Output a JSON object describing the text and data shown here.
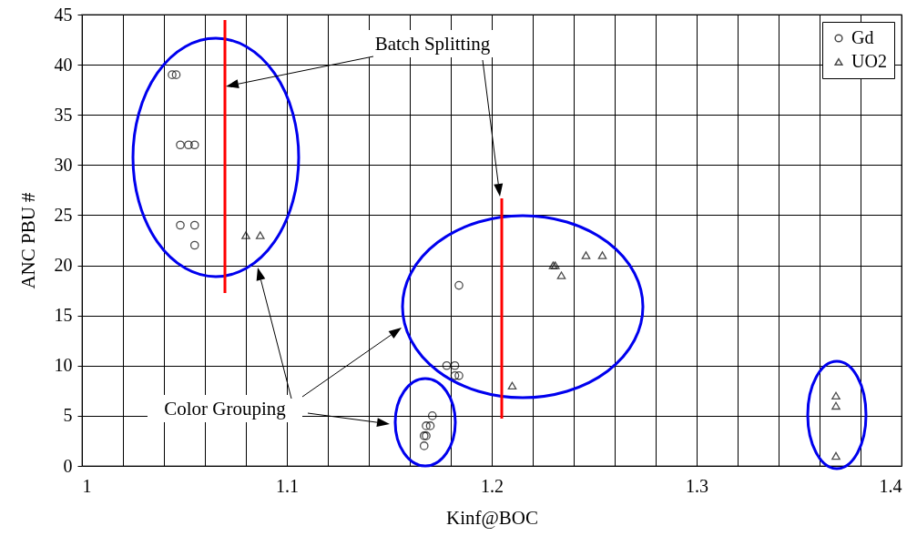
{
  "chart_data": {
    "type": "scatter",
    "xlabel": "Kinf@BOC",
    "ylabel": "ANC PBU #",
    "xlim": [
      1,
      1.4
    ],
    "ylim": [
      0,
      45
    ],
    "xticks": [
      1,
      {
        "value": 1.02,
        "label": null
      },
      {
        "value": 1.04,
        "label": null
      },
      {
        "value": 1.06,
        "label": null
      },
      {
        "value": 1.08,
        "label": null
      },
      1.1,
      {
        "value": 1.12,
        "label": null
      },
      {
        "value": 1.14,
        "label": null
      },
      {
        "value": 1.16,
        "label": null
      },
      {
        "value": 1.18,
        "label": null
      },
      1.2,
      {
        "value": 1.22,
        "label": null
      },
      {
        "value": 1.24,
        "label": null
      },
      {
        "value": 1.26,
        "label": null
      },
      {
        "value": 1.28,
        "label": null
      },
      1.3,
      {
        "value": 1.32,
        "label": null
      },
      {
        "value": 1.34,
        "label": null
      },
      {
        "value": 1.36,
        "label": null
      },
      {
        "value": 1.38,
        "label": null
      },
      1.4
    ],
    "yticks": [
      0,
      5,
      10,
      15,
      20,
      25,
      30,
      35,
      40,
      45
    ],
    "grid": true,
    "legend": "top right",
    "series": [
      {
        "name": "Gd",
        "color": "#000000",
        "marker": "circle",
        "x": [
          1.044,
          1.046,
          1.048,
          1.052,
          1.055,
          1.048,
          1.055,
          1.055,
          1.184,
          1.178,
          1.182,
          1.182,
          1.184,
          1.171,
          1.168,
          1.17,
          1.167,
          1.168,
          1.167
        ],
        "values": [
          39,
          39,
          32,
          32,
          32,
          24,
          24,
          22,
          18,
          10,
          10,
          9,
          9,
          5,
          4,
          4,
          3,
          3,
          2
        ]
      },
      {
        "name": "UO2",
        "color": "#000000",
        "marker": "triangle",
        "x": [
          1.08,
          1.087,
          1.21,
          1.23,
          1.231,
          1.234,
          1.246,
          1.254,
          1.368,
          1.368,
          1.368
        ],
        "values": [
          23,
          23,
          8,
          20,
          20,
          19,
          21,
          21,
          7,
          6,
          1
        ]
      }
    ],
    "annotations": [
      "Batch Splitting",
      "Color Grouping"
    ]
  }
}
